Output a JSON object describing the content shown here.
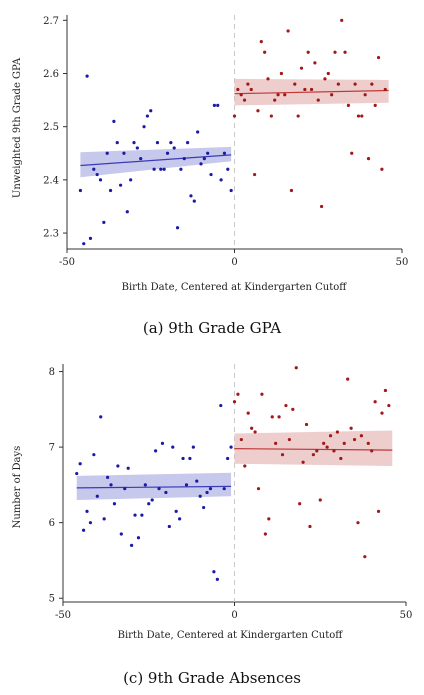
{
  "chart_data": [
    {
      "type": "scatter",
      "caption": "(a) 9th Grade GPA",
      "xlabel": "Birth Date, Centered at Kindergarten Cutoff",
      "ylabel": "Unweighted 9th Grade GPA",
      "xlim": [
        -50,
        50
      ],
      "ylim": [
        2.27,
        2.71
      ],
      "xticks": [
        -50,
        0,
        50
      ],
      "yticks": [
        2.3,
        2.4,
        2.5,
        2.6,
        2.7
      ],
      "cutoff": 0,
      "series": [
        {
          "side": "left",
          "color": "#1a1aa6",
          "band_color": "#b3b6e6",
          "line_color": "#3b3bb8",
          "fit": {
            "x": [
              -46,
              -1
            ],
            "y": [
              2.427,
              2.447
            ]
          },
          "band": {
            "lower": [
              2.405,
              2.435
            ],
            "upper": [
              2.452,
              2.462
            ]
          },
          "points": [
            [
              -46,
              2.38
            ],
            [
              -45,
              2.28
            ],
            [
              -44,
              2.595
            ],
            [
              -43,
              2.29
            ],
            [
              -42,
              2.42
            ],
            [
              -41,
              2.41
            ],
            [
              -40,
              2.4
            ],
            [
              -39,
              2.32
            ],
            [
              -38,
              2.45
            ],
            [
              -37,
              2.38
            ],
            [
              -36,
              2.51
            ],
            [
              -35,
              2.47
            ],
            [
              -34,
              2.39
            ],
            [
              -33,
              2.45
            ],
            [
              -32,
              2.34
            ],
            [
              -31,
              2.4
            ],
            [
              -30,
              2.47
            ],
            [
              -29,
              2.46
            ],
            [
              -28,
              2.44
            ],
            [
              -27,
              2.5
            ],
            [
              -26,
              2.52
            ],
            [
              -25,
              2.53
            ],
            [
              -24,
              2.42
            ],
            [
              -23,
              2.47
            ],
            [
              -22,
              2.42
            ],
            [
              -21,
              2.42
            ],
            [
              -20,
              2.45
            ],
            [
              -19,
              2.47
            ],
            [
              -18,
              2.46
            ],
            [
              -17,
              2.31
            ],
            [
              -16,
              2.42
            ],
            [
              -15,
              2.44
            ],
            [
              -14,
              2.47
            ],
            [
              -13,
              2.37
            ],
            [
              -12,
              2.36
            ],
            [
              -11,
              2.49
            ],
            [
              -10,
              2.43
            ],
            [
              -9,
              2.44
            ],
            [
              -8,
              2.45
            ],
            [
              -7,
              2.41
            ],
            [
              -6,
              2.54
            ],
            [
              -5,
              2.54
            ],
            [
              -4,
              2.4
            ],
            [
              -3,
              2.45
            ],
            [
              -2,
              2.42
            ],
            [
              -1,
              2.38
            ]
          ]
        },
        {
          "side": "right",
          "color": "#a01818",
          "band_color": "#e8bcbc",
          "line_color": "#c03838",
          "fit": {
            "x": [
              0,
              46
            ],
            "y": [
              2.562,
              2.568
            ]
          },
          "band": {
            "lower": [
              2.54,
              2.545
            ],
            "upper": [
              2.59,
              2.588
            ]
          },
          "points": [
            [
              0,
              2.52
            ],
            [
              1,
              2.57
            ],
            [
              2,
              2.56
            ],
            [
              3,
              2.55
            ],
            [
              4,
              2.58
            ],
            [
              5,
              2.57
            ],
            [
              6,
              2.41
            ],
            [
              7,
              2.53
            ],
            [
              8,
              2.66
            ],
            [
              9,
              2.64
            ],
            [
              10,
              2.59
            ],
            [
              11,
              2.52
            ],
            [
              12,
              2.55
            ],
            [
              13,
              2.56
            ],
            [
              14,
              2.6
            ],
            [
              15,
              2.56
            ],
            [
              16,
              2.68
            ],
            [
              17,
              2.38
            ],
            [
              18,
              2.58
            ],
            [
              19,
              2.52
            ],
            [
              20,
              2.61
            ],
            [
              21,
              2.57
            ],
            [
              22,
              2.64
            ],
            [
              23,
              2.57
            ],
            [
              24,
              2.62
            ],
            [
              25,
              2.55
            ],
            [
              26,
              2.35
            ],
            [
              27,
              2.59
            ],
            [
              28,
              2.6
            ],
            [
              29,
              2.56
            ],
            [
              30,
              2.64
            ],
            [
              31,
              2.58
            ],
            [
              32,
              2.7
            ],
            [
              33,
              2.64
            ],
            [
              34,
              2.54
            ],
            [
              35,
              2.45
            ],
            [
              36,
              2.58
            ],
            [
              37,
              2.52
            ],
            [
              38,
              2.52
            ],
            [
              39,
              2.56
            ],
            [
              40,
              2.44
            ],
            [
              41,
              2.58
            ],
            [
              42,
              2.54
            ],
            [
              43,
              2.63
            ],
            [
              44,
              2.42
            ],
            [
              45,
              2.57
            ]
          ]
        }
      ]
    },
    {
      "type": "scatter",
      "caption": "(c) 9th Grade Absences",
      "xlabel": "Birth Date, Centered at Kindergarten Cutoff",
      "ylabel": "Number of Days",
      "xlim": [
        -50,
        50
      ],
      "ylim": [
        4.95,
        8.1
      ],
      "xticks": [
        -50,
        0,
        50
      ],
      "yticks": [
        5,
        6,
        7,
        8
      ],
      "cutoff": 0,
      "series": [
        {
          "side": "left",
          "color": "#1a1aa6",
          "band_color": "#b3b6e6",
          "line_color": "#3b3bb8",
          "fit": {
            "x": [
              -46,
              -1
            ],
            "y": [
              6.46,
              6.48
            ]
          },
          "band": {
            "lower": [
              6.3,
              6.35
            ],
            "upper": [
              6.62,
              6.66
            ]
          },
          "points": [
            [
              -46,
              6.65
            ],
            [
              -45,
              6.78
            ],
            [
              -44,
              5.9
            ],
            [
              -43,
              6.15
            ],
            [
              -42,
              6.0
            ],
            [
              -41,
              6.9
            ],
            [
              -40,
              6.35
            ],
            [
              -39,
              7.4
            ],
            [
              -38,
              6.05
            ],
            [
              -37,
              6.6
            ],
            [
              -36,
              6.5
            ],
            [
              -35,
              6.25
            ],
            [
              -34,
              6.75
            ],
            [
              -33,
              5.85
            ],
            [
              -32,
              6.45
            ],
            [
              -31,
              6.72
            ],
            [
              -30,
              5.7
            ],
            [
              -29,
              6.1
            ],
            [
              -28,
              5.8
            ],
            [
              -27,
              6.1
            ],
            [
              -26,
              6.5
            ],
            [
              -25,
              6.25
            ],
            [
              -24,
              6.3
            ],
            [
              -23,
              6.95
            ],
            [
              -22,
              6.45
            ],
            [
              -21,
              7.05
            ],
            [
              -20,
              6.4
            ],
            [
              -19,
              5.95
            ],
            [
              -18,
              7.0
            ],
            [
              -17,
              6.15
            ],
            [
              -16,
              6.05
            ],
            [
              -15,
              6.85
            ],
            [
              -14,
              6.5
            ],
            [
              -13,
              6.85
            ],
            [
              -12,
              7.0
            ],
            [
              -11,
              6.55
            ],
            [
              -10,
              6.35
            ],
            [
              -9,
              6.2
            ],
            [
              -8,
              6.4
            ],
            [
              -7,
              6.45
            ],
            [
              -6,
              5.35
            ],
            [
              -5,
              5.25
            ],
            [
              -4,
              7.55
            ],
            [
              -3,
              6.45
            ],
            [
              -2,
              6.85
            ],
            [
              -1,
              7.0
            ]
          ]
        },
        {
          "side": "right",
          "color": "#a01818",
          "band_color": "#e8bcbc",
          "line_color": "#c03838",
          "fit": {
            "x": [
              0,
              46
            ],
            "y": [
              6.98,
              6.96
            ]
          },
          "band": {
            "lower": [
              6.78,
              6.75
            ],
            "upper": [
              7.18,
              7.22
            ]
          },
          "points": [
            [
              0,
              7.6
            ],
            [
              1,
              7.7
            ],
            [
              2,
              7.1
            ],
            [
              3,
              6.75
            ],
            [
              4,
              7.45
            ],
            [
              5,
              7.25
            ],
            [
              6,
              7.2
            ],
            [
              7,
              6.45
            ],
            [
              8,
              7.7
            ],
            [
              9,
              5.85
            ],
            [
              10,
              6.05
            ],
            [
              11,
              7.4
            ],
            [
              12,
              7.05
            ],
            [
              13,
              7.4
            ],
            [
              14,
              6.9
            ],
            [
              15,
              7.55
            ],
            [
              16,
              7.1
            ],
            [
              17,
              7.5
            ],
            [
              18,
              8.05
            ],
            [
              19,
              6.25
            ],
            [
              20,
              6.8
            ],
            [
              21,
              7.3
            ],
            [
              22,
              5.95
            ],
            [
              23,
              6.9
            ],
            [
              24,
              6.95
            ],
            [
              25,
              6.3
            ],
            [
              26,
              7.05
            ],
            [
              27,
              7.0
            ],
            [
              28,
              7.15
            ],
            [
              29,
              6.95
            ],
            [
              30,
              7.2
            ],
            [
              31,
              6.85
            ],
            [
              32,
              7.05
            ],
            [
              33,
              7.9
            ],
            [
              34,
              7.25
            ],
            [
              35,
              7.1
            ],
            [
              36,
              6.0
            ],
            [
              37,
              7.15
            ],
            [
              38,
              5.55
            ],
            [
              39,
              7.05
            ],
            [
              40,
              6.95
            ],
            [
              41,
              7.6
            ],
            [
              42,
              6.15
            ],
            [
              43,
              7.45
            ],
            [
              44,
              7.75
            ],
            [
              45,
              7.55
            ]
          ]
        }
      ]
    }
  ]
}
